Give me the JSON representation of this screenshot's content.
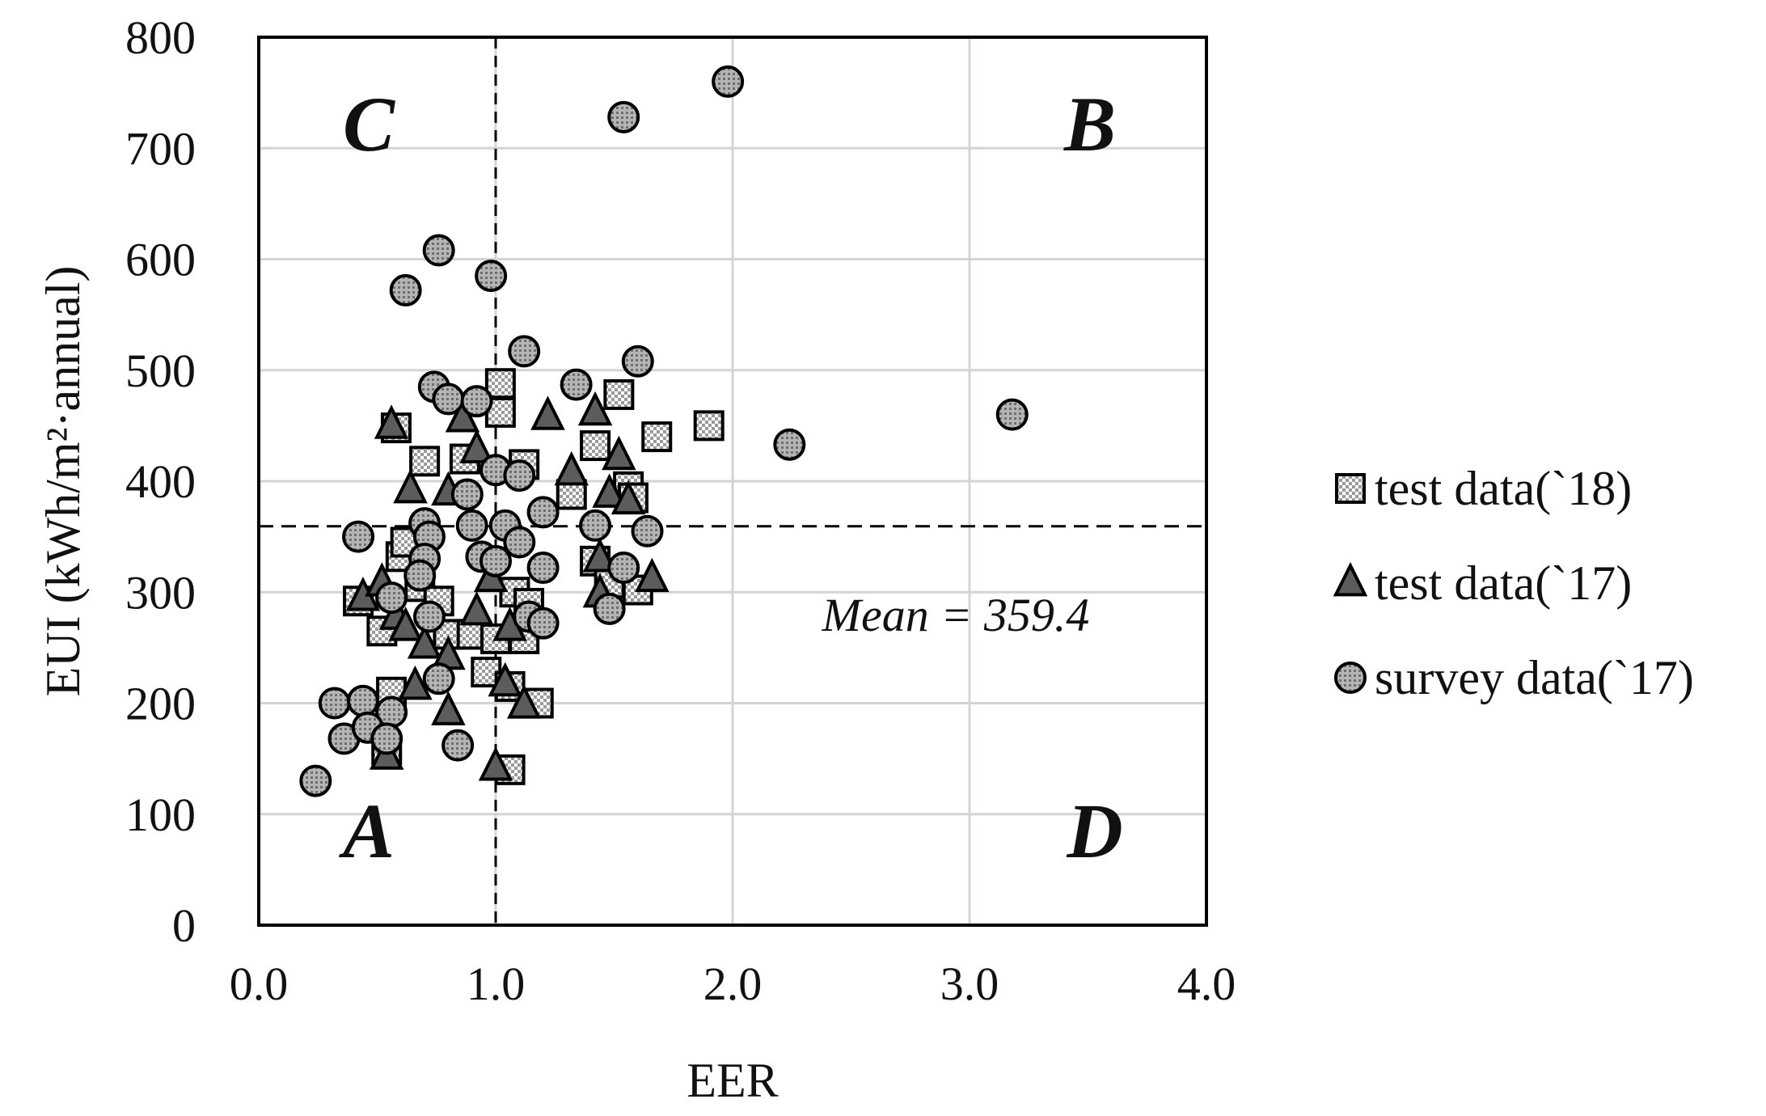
{
  "chart_data": {
    "type": "scatter",
    "xlabel": "EER",
    "ylabel": "EUI (kWh/m²·annual)",
    "xlim": [
      0.0,
      4.0
    ],
    "ylim": [
      0,
      800
    ],
    "x_ticks": [
      "0.0",
      "1.0",
      "2.0",
      "3.0",
      "4.0"
    ],
    "y_ticks": [
      "0",
      "100",
      "200",
      "300",
      "400",
      "500",
      "600",
      "700",
      "800"
    ],
    "grid": true,
    "legend_position": "right",
    "reference_lines": {
      "x": 1.0,
      "y": 359.4
    },
    "mean_label": "Mean = 359.4",
    "quadrant_labels": {
      "A": "A",
      "B": "B",
      "C": "C",
      "D": "D"
    },
    "series": [
      {
        "name": "test data(`18)",
        "marker": "square",
        "points": [
          [
            0.58,
            448
          ],
          [
            0.7,
            418
          ],
          [
            0.87,
            420
          ],
          [
            1.02,
            488
          ],
          [
            1.02,
            462
          ],
          [
            1.12,
            415
          ],
          [
            1.32,
            388
          ],
          [
            1.42,
            432
          ],
          [
            1.52,
            478
          ],
          [
            1.56,
            395
          ],
          [
            1.58,
            385
          ],
          [
            1.68,
            440
          ],
          [
            1.9,
            450
          ],
          [
            0.42,
            292
          ],
          [
            0.52,
            265
          ],
          [
            0.56,
            210
          ],
          [
            0.6,
            332
          ],
          [
            0.62,
            345
          ],
          [
            0.68,
            305
          ],
          [
            0.76,
            292
          ],
          [
            0.8,
            262
          ],
          [
            0.9,
            262
          ],
          [
            0.96,
            228
          ],
          [
            1.0,
            258
          ],
          [
            1.06,
            215
          ],
          [
            1.08,
            300
          ],
          [
            1.12,
            258
          ],
          [
            1.14,
            290
          ],
          [
            1.18,
            200
          ],
          [
            1.42,
            328
          ],
          [
            1.48,
            308
          ],
          [
            1.6,
            302
          ],
          [
            0.54,
            158
          ],
          [
            1.06,
            140
          ]
        ]
      },
      {
        "name": "test data(`17)",
        "marker": "triangle",
        "points": [
          [
            0.56,
            450
          ],
          [
            0.86,
            456
          ],
          [
            0.92,
            428
          ],
          [
            1.22,
            458
          ],
          [
            1.42,
            462
          ],
          [
            1.52,
            422
          ],
          [
            0.64,
            392
          ],
          [
            0.8,
            390
          ],
          [
            1.32,
            408
          ],
          [
            1.48,
            388
          ],
          [
            1.56,
            382
          ],
          [
            0.44,
            295
          ],
          [
            0.52,
            308
          ],
          [
            0.58,
            278
          ],
          [
            0.62,
            268
          ],
          [
            0.7,
            252
          ],
          [
            0.8,
            242
          ],
          [
            0.92,
            282
          ],
          [
            0.98,
            312
          ],
          [
            1.06,
            268
          ],
          [
            1.44,
            330
          ],
          [
            1.44,
            298
          ],
          [
            1.66,
            312
          ],
          [
            0.66,
            215
          ],
          [
            0.8,
            192
          ],
          [
            1.04,
            218
          ],
          [
            1.12,
            198
          ],
          [
            0.54,
            152
          ],
          [
            1.0,
            142
          ]
        ]
      },
      {
        "name": "survey data(`17)",
        "marker": "circle",
        "points": [
          [
            1.98,
            760
          ],
          [
            1.54,
            728
          ],
          [
            0.76,
            608
          ],
          [
            0.62,
            572
          ],
          [
            0.98,
            585
          ],
          [
            1.12,
            517
          ],
          [
            1.6,
            508
          ],
          [
            0.74,
            485
          ],
          [
            0.8,
            474
          ],
          [
            0.92,
            472
          ],
          [
            1.34,
            487
          ],
          [
            2.24,
            433
          ],
          [
            3.18,
            460
          ],
          [
            0.42,
            350
          ],
          [
            0.7,
            362
          ],
          [
            0.72,
            350
          ],
          [
            0.7,
            330
          ],
          [
            0.68,
            315
          ],
          [
            0.88,
            388
          ],
          [
            0.9,
            360
          ],
          [
            0.94,
            332
          ],
          [
            1.0,
            410
          ],
          [
            1.0,
            328
          ],
          [
            1.04,
            360
          ],
          [
            1.1,
            405
          ],
          [
            1.1,
            345
          ],
          [
            1.2,
            372
          ],
          [
            1.2,
            322
          ],
          [
            1.14,
            278
          ],
          [
            1.2,
            272
          ],
          [
            1.42,
            360
          ],
          [
            1.54,
            322
          ],
          [
            1.64,
            355
          ],
          [
            1.48,
            285
          ],
          [
            0.56,
            295
          ],
          [
            0.72,
            278
          ],
          [
            0.76,
            222
          ],
          [
            0.32,
            200
          ],
          [
            0.44,
            202
          ],
          [
            0.56,
            192
          ],
          [
            0.36,
            168
          ],
          [
            0.46,
            178
          ],
          [
            0.54,
            168
          ],
          [
            0.84,
            162
          ],
          [
            0.24,
            130
          ]
        ]
      }
    ]
  }
}
